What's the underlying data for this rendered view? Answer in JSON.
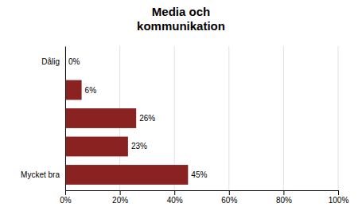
{
  "chart_data": {
    "type": "bar",
    "orientation": "horizontal",
    "title": "Media och\nkommunikation",
    "categories": [
      "Dålig",
      null,
      null,
      null,
      "Mycket bra"
    ],
    "values": [
      0,
      6,
      26,
      23,
      45
    ],
    "value_labels": [
      "0%",
      "6%",
      "26%",
      "23%",
      "45%"
    ],
    "data_labels": true,
    "color": "#8b2222",
    "xlim": [
      0,
      100
    ],
    "xticks": [
      {
        "value": 0,
        "label": "0%"
      },
      {
        "value": 20,
        "label": "20%"
      },
      {
        "value": 40,
        "label": "40%"
      },
      {
        "value": 60,
        "label": "60%"
      },
      {
        "value": 80,
        "label": "80%"
      },
      {
        "value": 100,
        "label": "100%"
      }
    ],
    "grid": true
  }
}
